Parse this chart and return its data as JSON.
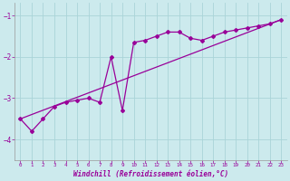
{
  "xlabel": "Windchill (Refroidissement éolien,°C)",
  "background_color": "#cceaed",
  "line_color": "#990099",
  "grid_color": "#aad4d8",
  "line1_x": [
    0,
    1,
    2,
    3,
    4,
    5,
    6,
    7,
    8,
    9,
    10,
    11,
    12,
    13,
    14,
    15,
    16,
    17,
    18,
    19,
    20,
    21,
    22,
    23
  ],
  "line1_y": [
    -3.5,
    -3.8,
    -3.5,
    -3.2,
    -3.1,
    -3.05,
    -3.0,
    -3.1,
    -2.0,
    -3.3,
    -1.65,
    -1.6,
    -1.5,
    -1.4,
    -1.4,
    -1.55,
    -1.6,
    -1.5,
    -1.4,
    -1.35,
    -1.3,
    -1.25,
    -1.2,
    -1.1
  ],
  "line2_x": [
    0,
    23
  ],
  "line2_y": [
    -3.5,
    -1.1
  ],
  "ylim": [
    -4.5,
    -0.7
  ],
  "yticks": [
    -4,
    -3,
    -2,
    -1
  ],
  "xlim": [
    -0.5,
    23.5
  ],
  "xticks": [
    0,
    1,
    2,
    3,
    4,
    5,
    6,
    7,
    8,
    9,
    10,
    11,
    12,
    13,
    14,
    15,
    16,
    17,
    18,
    19,
    20,
    21,
    22,
    23
  ]
}
